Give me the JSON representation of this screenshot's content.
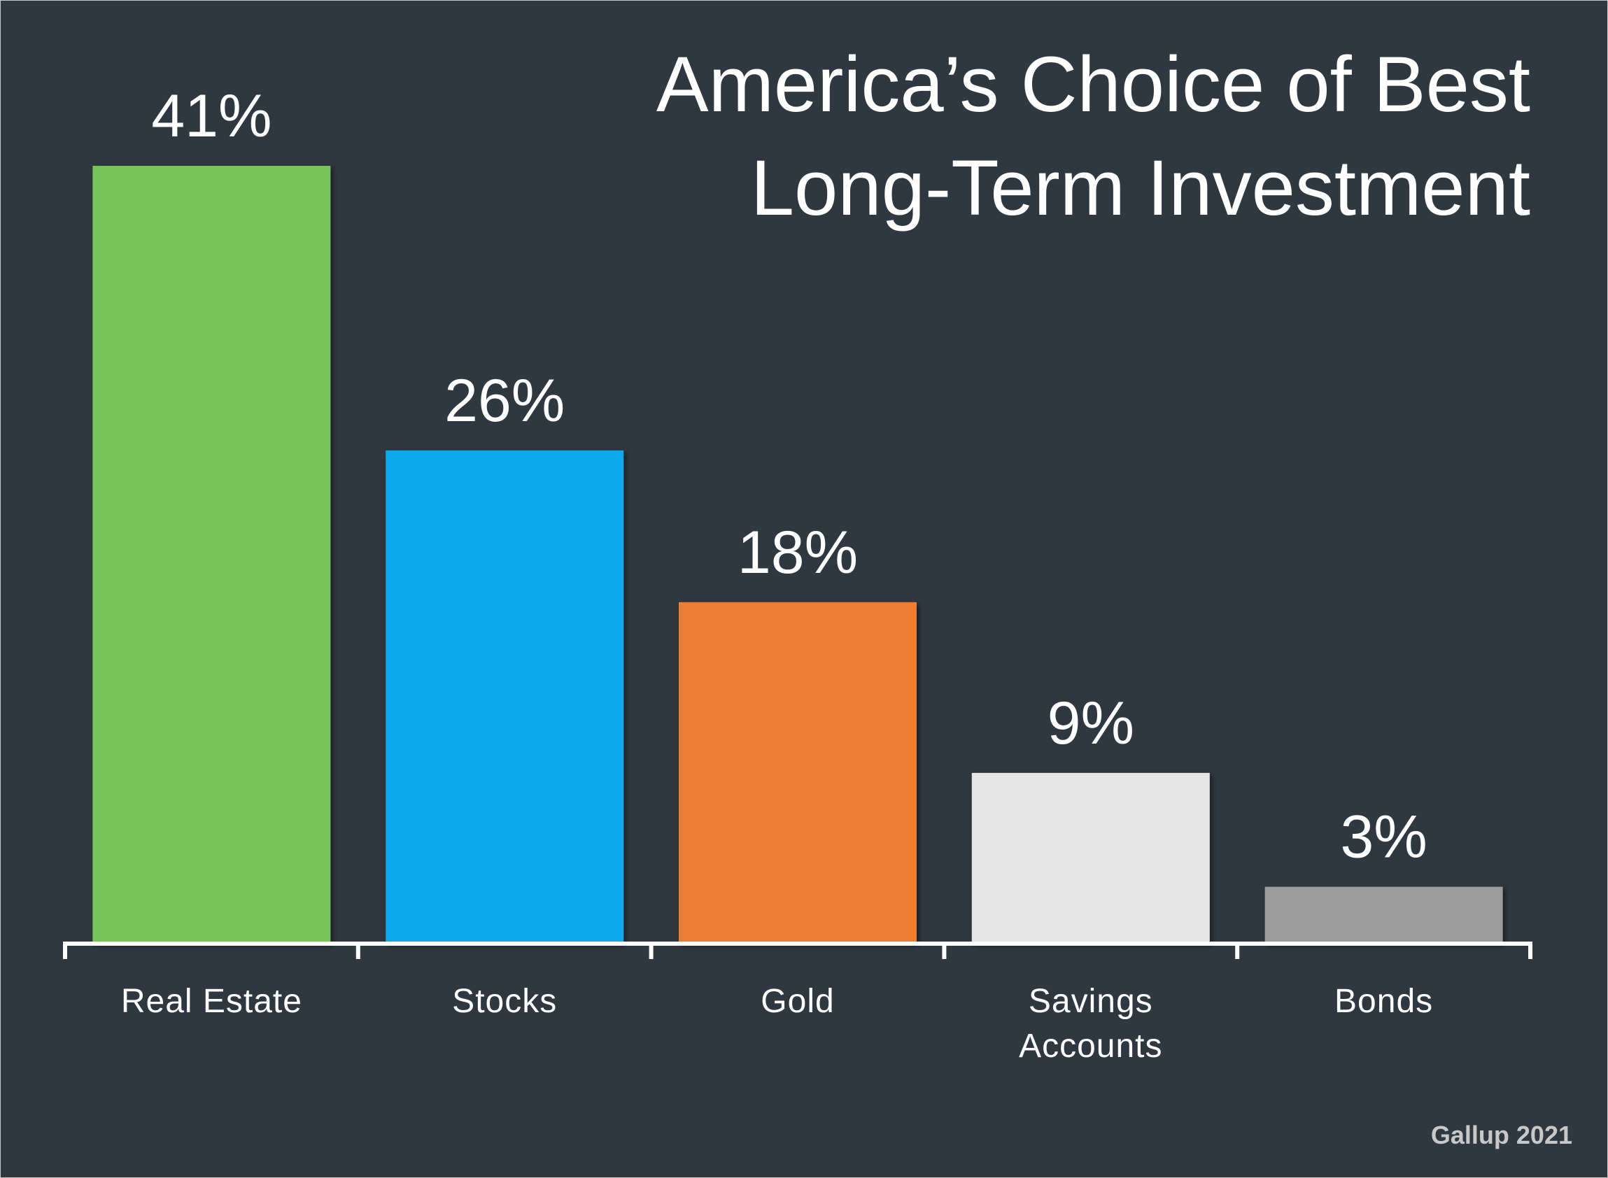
{
  "chart_data": {
    "type": "bar",
    "title_lines": [
      "America’s Choice of Best",
      "Long-Term Investment"
    ],
    "categories": [
      [
        "Real Estate"
      ],
      [
        "Stocks"
      ],
      [
        "Gold"
      ],
      [
        "Savings",
        "Accounts"
      ],
      [
        "Bonds"
      ]
    ],
    "values": [
      41,
      26,
      18,
      9,
      3
    ],
    "value_labels": [
      "41%",
      "26%",
      "18%",
      "9%",
      "3%"
    ],
    "colors": [
      "#78c45a",
      "#0eaaeb",
      "#ed7d31",
      "#e6e6e6",
      "#9b9b9b"
    ],
    "ylim": [
      0,
      41
    ],
    "grid": false,
    "legend": "none",
    "source": "Gallup 2021"
  },
  "colors": {
    "background": "#2f3840",
    "axis": "#ffffff",
    "text": "#ffffff",
    "source_text": "#c8c8c8"
  }
}
